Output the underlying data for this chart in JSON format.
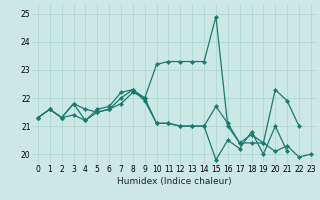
{
  "xlabel": "Humidex (Indice chaleur)",
  "bg_color": "#cce8e4",
  "grid_color": "#aad4cc",
  "line_color": "#1a7a6e",
  "xlim": [
    -0.5,
    23.5
  ],
  "ylim": [
    19.65,
    25.35
  ],
  "yticks": [
    20,
    21,
    22,
    23,
    24,
    25
  ],
  "xticks": [
    0,
    1,
    2,
    3,
    4,
    5,
    6,
    7,
    8,
    9,
    10,
    11,
    12,
    13,
    14,
    15,
    16,
    17,
    18,
    19,
    20,
    21,
    22,
    23
  ],
  "xtick_labels": [
    "0",
    "1",
    "2",
    "3",
    "4",
    "5",
    "6",
    "7",
    "8",
    "9",
    "10",
    "11",
    "12",
    "13",
    "14",
    "15",
    "16",
    "17",
    "18",
    "19",
    "20",
    "21",
    "22",
    "23"
  ],
  "series": [
    [
      21.3,
      21.6,
      21.3,
      21.8,
      21.2,
      21.6,
      21.7,
      22.2,
      22.3,
      21.9,
      21.1,
      21.1,
      21.0,
      21.0,
      21.0,
      21.7,
      21.1,
      20.4,
      20.7,
      20.4,
      20.1,
      20.3,
      19.9,
      20.0
    ],
    [
      21.3,
      21.6,
      21.3,
      21.8,
      21.6,
      21.5,
      21.6,
      21.8,
      22.2,
      22.0,
      23.2,
      23.3,
      23.3,
      23.3,
      23.3,
      24.9,
      21.0,
      20.4,
      20.4,
      20.4,
      22.3,
      21.9,
      21.0,
      null
    ],
    [
      21.3,
      21.6,
      21.3,
      21.4,
      21.2,
      21.5,
      21.6,
      22.0,
      22.3,
      22.0,
      21.1,
      21.1,
      21.0,
      21.0,
      21.0,
      19.8,
      20.5,
      20.2,
      20.8,
      20.0,
      21.0,
      20.1,
      null,
      null
    ]
  ],
  "tick_fontsize": 5.5,
  "xlabel_fontsize": 6.5,
  "marker_size": 2.2,
  "linewidth": 0.9
}
